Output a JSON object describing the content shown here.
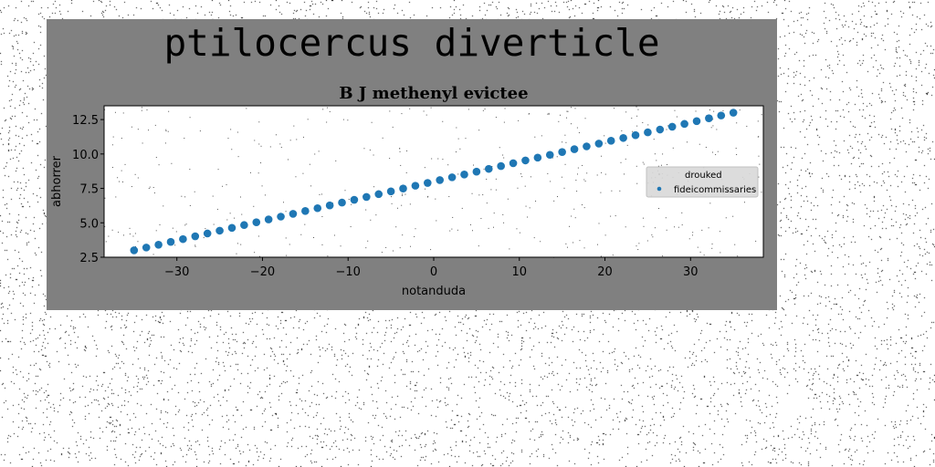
{
  "colors": {
    "figure_background": "#808080",
    "plot_background": "#ffffff",
    "series_1": "#1f77b4",
    "legend_background": "#d9d9d9"
  },
  "figure": {
    "suptitle": "ptilocercus diverticle"
  },
  "chart_data": {
    "type": "scatter",
    "title": "B J methenyl evictee",
    "xlabel": "notanduda",
    "ylabel": "abhorrer",
    "xlim": [
      -38.5,
      38.5
    ],
    "ylim": [
      2.5,
      13.5
    ],
    "xticks": [
      -30,
      -20,
      -10,
      0,
      10,
      20,
      30
    ],
    "xtick_labels": [
      "−30",
      "−20",
      "−10",
      "0",
      "10",
      "20",
      "30"
    ],
    "yticks": [
      2.5,
      5.0,
      7.5,
      10.0,
      12.5
    ],
    "ytick_labels": [
      "2.5",
      "5.0",
      "7.5",
      "10.0",
      "12.5"
    ],
    "grid": false,
    "legend": {
      "position": "right",
      "entries": [
        "drouked",
        "fideicommissaries"
      ]
    },
    "series": [
      {
        "name": "drouked",
        "x": [],
        "y": []
      },
      {
        "name": "fideicommissaries",
        "x": [
          -35,
          -33.571,
          -32.143,
          -30.714,
          -29.286,
          -27.857,
          -26.429,
          -25,
          -23.571,
          -22.143,
          -20.714,
          -19.286,
          -17.857,
          -16.429,
          -15,
          -13.571,
          -12.143,
          -10.714,
          -9.286,
          -7.857,
          -6.429,
          -5,
          -3.571,
          -2.143,
          -0.714,
          0.714,
          2.143,
          3.571,
          5,
          6.429,
          7.857,
          9.286,
          10.714,
          12.143,
          13.571,
          15,
          16.429,
          17.857,
          19.286,
          20.714,
          22.143,
          23.571,
          25,
          26.429,
          27.857,
          29.286,
          30.714,
          32.143,
          33.571,
          35
        ],
        "y": [
          3,
          3.204,
          3.408,
          3.612,
          3.816,
          4.02,
          4.224,
          4.429,
          4.633,
          4.837,
          5.041,
          5.245,
          5.449,
          5.653,
          5.857,
          6.061,
          6.265,
          6.469,
          6.673,
          6.878,
          7.082,
          7.286,
          7.49,
          7.694,
          7.898,
          8.102,
          8.306,
          8.51,
          8.714,
          8.918,
          9.122,
          9.327,
          9.531,
          9.735,
          9.939,
          10.143,
          10.347,
          10.551,
          10.755,
          10.959,
          11.163,
          11.367,
          11.571,
          11.776,
          11.98,
          12.184,
          12.388,
          12.592,
          12.796,
          13
        ]
      }
    ]
  }
}
